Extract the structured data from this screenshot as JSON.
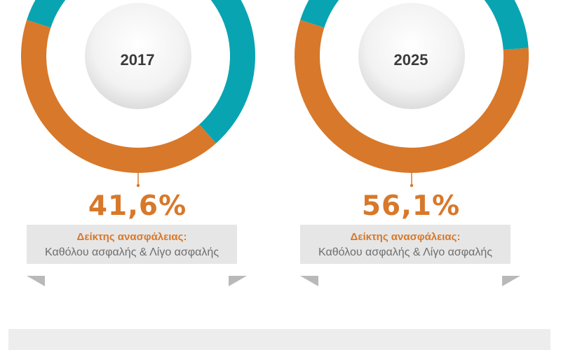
{
  "chart_data": [
    {
      "type": "pie",
      "year": "2017",
      "value_label": "41,6%",
      "slices": [
        {
          "value": 41.6,
          "color": "#d8782a"
        },
        {
          "value": 58.4,
          "color": "#08a4b1"
        }
      ],
      "caption_title": "Δείκτης ανασφάλειας:",
      "caption_text": "Καθόλου ασφαλής & Λίγο ασφαλής"
    },
    {
      "type": "pie",
      "year": "2025",
      "value_label": "56,1%",
      "slices": [
        {
          "value": 56.1,
          "color": "#d8782a"
        },
        {
          "value": 43.9,
          "color": "#08a4b1"
        }
      ],
      "caption_title": "Δείκτης ανασφάλειας:",
      "caption_text": "Καθόλου ασφαλής & Λίγο ασφαλής"
    }
  ],
  "colors": {
    "accent": "#d8782a",
    "teal": "#08a4b1",
    "banner": "#e6e6e6"
  }
}
